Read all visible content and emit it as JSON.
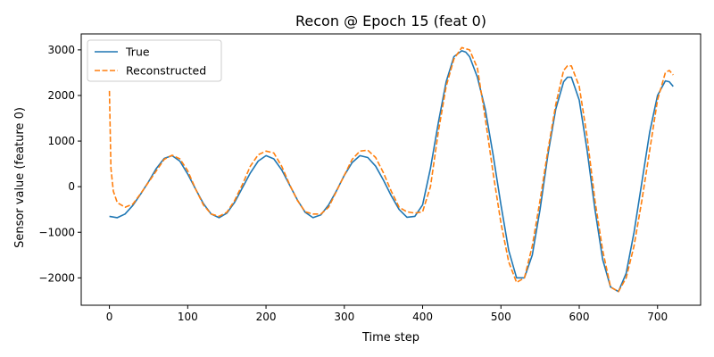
{
  "chart_data": {
    "type": "line",
    "title": "Recon @ Epoch 15 (feat 0)",
    "xlabel": "Time step",
    "ylabel": "Sensor value (feature 0)",
    "xlim": [
      -36,
      755
    ],
    "ylim": [
      -2600,
      3350
    ],
    "xticks": [
      0,
      100,
      200,
      300,
      400,
      500,
      600,
      700
    ],
    "yticks": [
      -2000,
      -1000,
      0,
      1000,
      2000,
      3000
    ],
    "xtick_labels": [
      "0",
      "100",
      "200",
      "300",
      "400",
      "500",
      "600",
      "700"
    ],
    "ytick_labels": [
      "−2000",
      "−1000",
      "0",
      "1000",
      "2000",
      "3000"
    ],
    "grid": false,
    "legend_position": "top-left",
    "series": [
      {
        "name": "True",
        "color": "#1f77b4",
        "style": "solid",
        "x": [
          0,
          10,
          20,
          30,
          40,
          50,
          60,
          70,
          80,
          90,
          100,
          110,
          120,
          130,
          140,
          150,
          160,
          170,
          180,
          190,
          200,
          210,
          220,
          230,
          240,
          250,
          260,
          270,
          280,
          290,
          300,
          310,
          320,
          330,
          340,
          350,
          360,
          370,
          380,
          390,
          400,
          410,
          420,
          430,
          440,
          450,
          455,
          460,
          470,
          480,
          490,
          500,
          510,
          520,
          530,
          540,
          550,
          560,
          570,
          580,
          585,
          590,
          600,
          610,
          620,
          630,
          640,
          650,
          660,
          670,
          680,
          690,
          700,
          710,
          715,
          720
        ],
        "y": [
          -650,
          -680,
          -600,
          -410,
          -160,
          110,
          400,
          620,
          680,
          560,
          280,
          -50,
          -370,
          -600,
          -680,
          -580,
          -340,
          -20,
          300,
          560,
          680,
          610,
          370,
          40,
          -290,
          -560,
          -680,
          -620,
          -400,
          -90,
          250,
          530,
          680,
          640,
          450,
          140,
          -200,
          -500,
          -670,
          -650,
          -400,
          400,
          1400,
          2300,
          2850,
          2980,
          2950,
          2850,
          2400,
          1700,
          700,
          -400,
          -1400,
          -2000,
          -2000,
          -1500,
          -500,
          700,
          1700,
          2300,
          2400,
          2400,
          1900,
          800,
          -500,
          -1600,
          -2200,
          -2300,
          -1900,
          -1000,
          100,
          1200,
          2000,
          2320,
          2300,
          2200
        ]
      },
      {
        "name": "Reconstructed",
        "color": "#ff7f0e",
        "style": "dashed",
        "x": [
          0,
          2,
          5,
          10,
          20,
          30,
          40,
          50,
          60,
          70,
          80,
          90,
          100,
          110,
          120,
          130,
          140,
          150,
          160,
          170,
          180,
          190,
          200,
          210,
          220,
          230,
          240,
          250,
          260,
          270,
          280,
          290,
          300,
          310,
          320,
          330,
          340,
          350,
          360,
          370,
          380,
          390,
          400,
          410,
          420,
          430,
          440,
          450,
          460,
          470,
          480,
          490,
          500,
          510,
          520,
          530,
          540,
          550,
          560,
          570,
          580,
          585,
          590,
          600,
          610,
          620,
          630,
          640,
          650,
          660,
          670,
          680,
          690,
          700,
          710,
          715,
          720
        ],
        "y": [
          2100,
          400,
          -100,
          -350,
          -450,
          -380,
          -150,
          100,
          350,
          600,
          690,
          610,
          350,
          -50,
          -400,
          -600,
          -650,
          -560,
          -300,
          50,
          450,
          700,
          780,
          740,
          450,
          50,
          -300,
          -550,
          -600,
          -600,
          -450,
          -100,
          250,
          600,
          780,
          800,
          640,
          300,
          -100,
          -450,
          -550,
          -580,
          -550,
          0,
          1200,
          2200,
          2800,
          3050,
          3000,
          2600,
          1500,
          300,
          -800,
          -1650,
          -2100,
          -2000,
          -1300,
          -300,
          800,
          1800,
          2550,
          2650,
          2650,
          2200,
          1100,
          -300,
          -1400,
          -2200,
          -2300,
          -2000,
          -1300,
          -300,
          800,
          1900,
          2500,
          2550,
          2450
        ]
      }
    ]
  }
}
